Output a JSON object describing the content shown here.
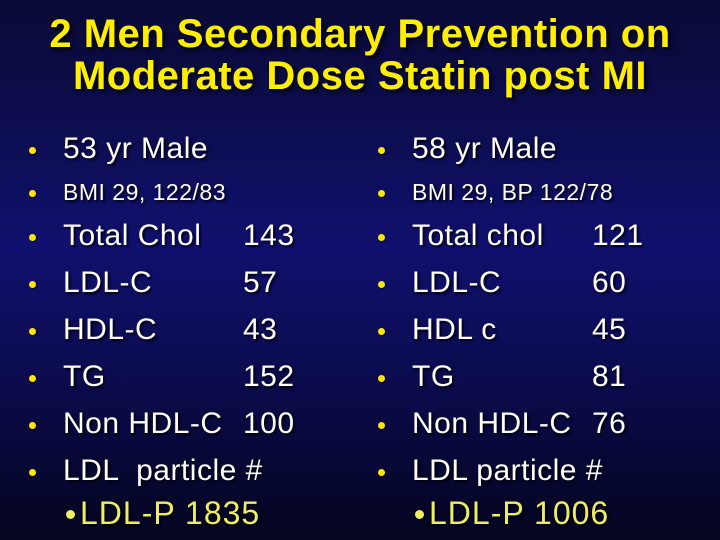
{
  "colors": {
    "title": "#ffee00",
    "body": "#ffffff",
    "highlight": "#efef5c",
    "bullet": "#ffe600",
    "bg_top": "#0a0a36",
    "bg_mid": "#10106e",
    "bg_bottom": "#04051f"
  },
  "slide": {
    "title_line1": "2 Men Secondary Prevention on",
    "title_line2": "Moderate Dose Statin post MI"
  },
  "patients": [
    {
      "age": "53 yr Male",
      "bmi": "BMI 29, 122/83",
      "labs": [
        {
          "label": "Total Chol",
          "value": "143"
        },
        {
          "label": "LDL-C",
          "value": "57"
        },
        {
          "label": "HDL-C",
          "value": "43"
        },
        {
          "label": "TG",
          "value": "152"
        },
        {
          "label": "Non HDL-C",
          "value": "100"
        },
        {
          "label": "LDL  particle #",
          "value": ""
        }
      ],
      "ldlp": "LDL-P 1835"
    },
    {
      "age": "58 yr Male",
      "bmi": "BMI 29, BP 122/78",
      "labs": [
        {
          "label": "Total chol",
          "value": "121"
        },
        {
          "label": "LDL-C",
          "value": "60"
        },
        {
          "label": "HDL c",
          "value": "45"
        },
        {
          "label": "TG",
          "value": "81"
        },
        {
          "label": "Non HDL-C",
          "value": "76"
        },
        {
          "label": "LDL particle #",
          "value": ""
        }
      ],
      "ldlp": "LDL-P 1006"
    }
  ]
}
